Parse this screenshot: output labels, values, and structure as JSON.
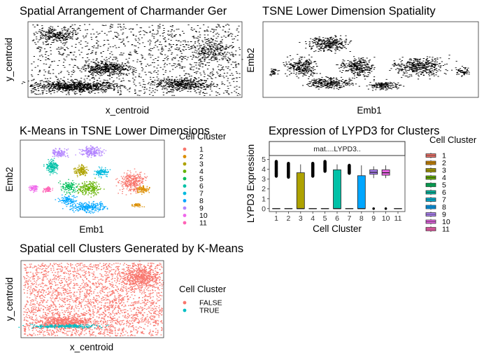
{
  "chart_data": [
    {
      "id": "spatial",
      "type": "scatter",
      "title": "Spatial Arrangement of Charmander Ger",
      "xlabel": "x_centroid",
      "ylabel": "y_centroid",
      "grid": false,
      "point_color": "#000000"
    },
    {
      "id": "tsne",
      "type": "scatter",
      "title": "TSNE Lower Dimension Spatiality",
      "xlabel": "Emb1",
      "ylabel": "Emb2",
      "grid": false,
      "point_color": "#000000"
    },
    {
      "id": "kmeans_tsne",
      "type": "scatter",
      "title": "K-Means in TSNE Lower Dimensions",
      "xlabel": "Emb1",
      "ylabel": "Emb2",
      "legend_title": "Cell Cluster",
      "legend_position": "right",
      "grid": false,
      "clusters": [
        {
          "name": "1",
          "color": "#F8766D"
        },
        {
          "name": "2",
          "color": "#DB8E00"
        },
        {
          "name": "3",
          "color": "#AEA200"
        },
        {
          "name": "4",
          "color": "#64B200"
        },
        {
          "name": "5",
          "color": "#00BD5C"
        },
        {
          "name": "6",
          "color": "#00C1A7"
        },
        {
          "name": "7",
          "color": "#00BADE"
        },
        {
          "name": "8",
          "color": "#00A6FF"
        },
        {
          "name": "9",
          "color": "#B385FF"
        },
        {
          "name": "10",
          "color": "#EF67EB"
        },
        {
          "name": "11",
          "color": "#FF63B6"
        }
      ]
    },
    {
      "id": "lypd3_box",
      "type": "box",
      "title": "Expression of LYPD3 for Clusters",
      "facet_label": "mat....LYPD3..",
      "xlabel": "Cell Cluster",
      "ylabel": "LYPD3 Expression",
      "ylim": [
        -0.3,
        5.4
      ],
      "yticks": [
        0,
        1,
        2,
        3,
        4,
        5
      ],
      "legend_title": "Cell Cluster",
      "legend_position": "right",
      "grid": false,
      "categories": [
        "1",
        "2",
        "3",
        "4",
        "5",
        "6",
        "7",
        "8",
        "9",
        "10",
        "11"
      ],
      "boxes": [
        {
          "q1": 0,
          "median": 0,
          "q3": 0,
          "lo": 0,
          "hi": 0,
          "outliers": [
            3.3,
            4.8
          ]
        },
        {
          "q1": 0,
          "median": 0,
          "q3": 0,
          "lo": 0,
          "hi": 0,
          "outliers": [
            3.2,
            4.6
          ]
        },
        {
          "q1": 0,
          "median": 0,
          "q3": 3.65,
          "lo": 0,
          "hi": 4.5,
          "outliers": []
        },
        {
          "q1": 0,
          "median": 0,
          "q3": 0,
          "lo": 0,
          "hi": 0,
          "outliers": [
            3.3,
            4.6
          ]
        },
        {
          "q1": 0,
          "median": 0,
          "q3": 0,
          "lo": 0,
          "hi": 0,
          "outliers": [
            3.8,
            4.8
          ]
        },
        {
          "q1": 0,
          "median": 0,
          "q3": 3.95,
          "lo": 0,
          "hi": 4.5,
          "outliers": []
        },
        {
          "q1": 0,
          "median": 0,
          "q3": 0,
          "lo": 0,
          "hi": 0,
          "outliers": [
            3.6,
            4.4
          ]
        },
        {
          "q1": 0,
          "median": 0,
          "q3": 3.35,
          "lo": 0,
          "hi": 4.4,
          "outliers": []
        },
        {
          "q1": 3.5,
          "median": 3.7,
          "q3": 3.95,
          "lo": 3.1,
          "hi": 4.3,
          "outliers": [
            0
          ]
        },
        {
          "q1": 3.4,
          "median": 3.65,
          "q3": 3.95,
          "lo": 3.1,
          "hi": 4.4,
          "outliers": [
            0
          ]
        },
        {
          "q1": 0,
          "median": 0,
          "q3": 0,
          "lo": 0,
          "hi": 0,
          "outliers": []
        }
      ]
    },
    {
      "id": "spatial_clusters",
      "type": "scatter",
      "title": "Spatial cell Clusters Generated by K-Means",
      "xlabel": "x_centroid",
      "ylabel": "y_centroid",
      "legend_title": "Cell Cluster",
      "legend_position": "right",
      "grid": false,
      "series": [
        {
          "name": "FALSE",
          "color": "#F8766D"
        },
        {
          "name": "TRUE",
          "color": "#00BFC4"
        }
      ]
    }
  ]
}
